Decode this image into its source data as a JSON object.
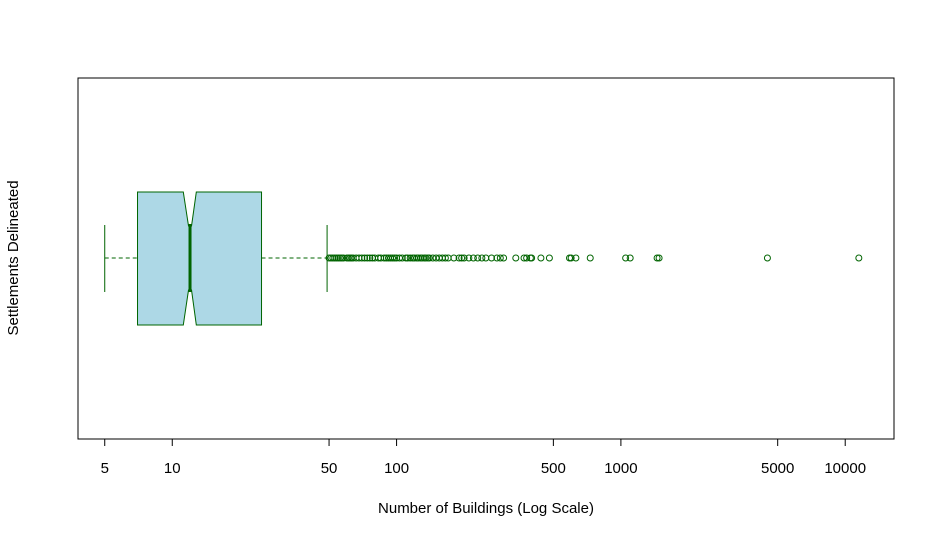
{
  "chart_data": {
    "type": "boxplot",
    "orientation": "horizontal",
    "notched": true,
    "xscale": "log",
    "xlabel": "Number of Buildings (Log Scale)",
    "ylabel": "Settlements Delineated",
    "xlim": [
      3.8,
      16500
    ],
    "xticks": [
      5,
      10,
      50,
      100,
      500,
      1000,
      5000,
      10000
    ],
    "xtick_labels": [
      "5",
      "10",
      "50",
      "100",
      "500",
      "1000",
      "5000",
      "10000"
    ],
    "box": {
      "whisker_low": 5,
      "q1": 7,
      "notch_low": 11.2,
      "median": 12,
      "notch_high": 12.8,
      "q3": 25,
      "whisker_high": 49
    },
    "outliers": [
      50,
      51,
      52,
      53,
      54,
      55,
      56,
      57,
      58,
      60,
      61,
      62,
      63,
      64,
      66,
      68,
      70,
      72,
      74,
      76,
      78,
      80,
      83,
      85,
      88,
      90,
      92,
      94,
      96,
      98,
      100,
      103,
      106,
      110,
      112,
      115,
      118,
      120,
      123,
      125,
      128,
      130,
      133,
      135,
      138,
      140,
      145,
      150,
      155,
      160,
      165,
      170,
      180,
      190,
      195,
      200,
      210,
      220,
      230,
      240,
      250,
      265,
      280,
      290,
      300,
      340,
      370,
      380,
      395,
      400,
      440,
      480,
      590,
      600,
      630,
      730,
      1050,
      1100,
      1450,
      1480,
      4500,
      11500
    ],
    "colors": {
      "box_fill": "#add8e6",
      "line": "#006400"
    }
  }
}
